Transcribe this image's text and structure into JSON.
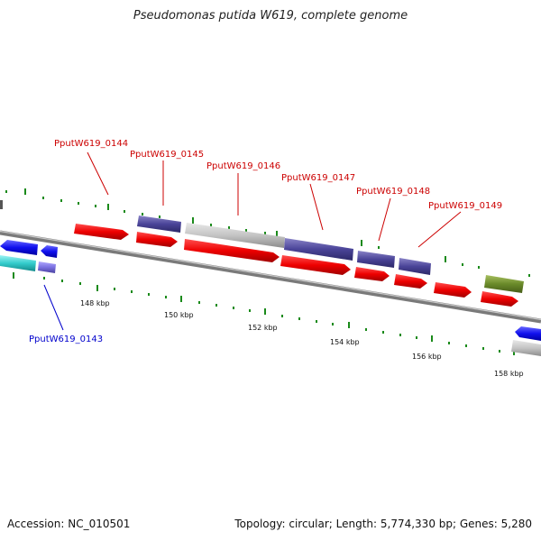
{
  "title": "Pseudomonas putida W619, complete genome",
  "footer": {
    "accession": "Accession: NC_010501",
    "summary": "Topology: circular; Length: 5,774,330 bp; Genes: 5,280"
  },
  "colors": {
    "label_red": "#cc0000",
    "label_blue": "#0000cc",
    "backbone": "#8a8a8a",
    "tick": "#1a8a1a"
  },
  "gene_labels": [
    {
      "name": "PputW619_0144",
      "color": "#cc0000"
    },
    {
      "name": "PputW619_0145",
      "color": "#cc0000"
    },
    {
      "name": "PputW619_0146",
      "color": "#cc0000"
    },
    {
      "name": "PputW619_0147",
      "color": "#cc0000"
    },
    {
      "name": "PputW619_0148",
      "color": "#cc0000"
    },
    {
      "name": "PputW619_0149",
      "color": "#cc0000"
    },
    {
      "name": "PputW619_0143",
      "color": "#0000cc"
    }
  ],
  "scale_labels": [
    "148 kbp",
    "150 kbp",
    "152 kbp",
    "154 kbp",
    "156 kbp",
    "158 kbp"
  ]
}
